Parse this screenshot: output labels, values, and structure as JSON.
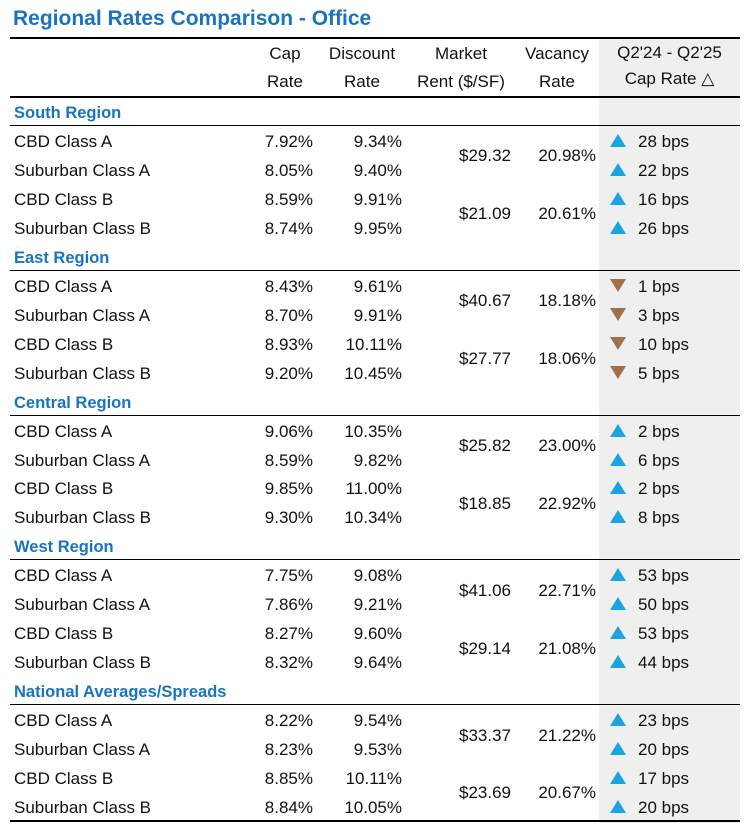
{
  "title": "Regional Rates Comparison - Office",
  "headers": {
    "cap": [
      "Cap",
      "Rate"
    ],
    "discount": [
      "Discount",
      "Rate"
    ],
    "rent": [
      "Market",
      "Rent ($/SF)"
    ],
    "vacancy": [
      "Vacancy",
      "Rate"
    ],
    "change": [
      "Q2'24 - Q2'25",
      "Cap Rate △"
    ]
  },
  "colors": {
    "title": "#1874c0",
    "up": "#1ca3e0",
    "down": "#a1704b",
    "shade": "#efefef"
  },
  "sections": [
    {
      "name": "South Region",
      "rows": [
        {
          "label": "CBD Class A",
          "cap": "7.92%",
          "discount": "9.34%",
          "change": "28 bps",
          "dir": "up"
        },
        {
          "label": "Suburban Class A",
          "cap": "8.05%",
          "discount": "9.40%",
          "change": "22 bps",
          "dir": "up"
        },
        {
          "label": "CBD Class B",
          "cap": "8.59%",
          "discount": "9.91%",
          "change": "16 bps",
          "dir": "up"
        },
        {
          "label": "Suburban Class B",
          "cap": "8.74%",
          "discount": "9.95%",
          "change": "26 bps",
          "dir": "up"
        }
      ],
      "pairs": [
        {
          "rent": "$29.32",
          "vacancy": "20.98%"
        },
        {
          "rent": "$21.09",
          "vacancy": "20.61%"
        }
      ]
    },
    {
      "name": "East Region",
      "rows": [
        {
          "label": "CBD Class A",
          "cap": "8.43%",
          "discount": "9.61%",
          "change": "1 bps",
          "dir": "down"
        },
        {
          "label": "Suburban Class A",
          "cap": "8.70%",
          "discount": "9.91%",
          "change": "3 bps",
          "dir": "down"
        },
        {
          "label": "CBD Class B",
          "cap": "8.93%",
          "discount": "10.11%",
          "change": "10 bps",
          "dir": "down"
        },
        {
          "label": "Suburban Class B",
          "cap": "9.20%",
          "discount": "10.45%",
          "change": "5 bps",
          "dir": "down"
        }
      ],
      "pairs": [
        {
          "rent": "$40.67",
          "vacancy": "18.18%"
        },
        {
          "rent": "$27.77",
          "vacancy": "18.06%"
        }
      ]
    },
    {
      "name": "Central Region",
      "rows": [
        {
          "label": "CBD Class A",
          "cap": "9.06%",
          "discount": "10.35%",
          "change": "2 bps",
          "dir": "up"
        },
        {
          "label": "Suburban Class A",
          "cap": "8.59%",
          "discount": "9.82%",
          "change": "6 bps",
          "dir": "up"
        },
        {
          "label": "CBD Class B",
          "cap": "9.85%",
          "discount": "11.00%",
          "change": "2 bps",
          "dir": "up"
        },
        {
          "label": "Suburban Class B",
          "cap": "9.30%",
          "discount": "10.34%",
          "change": "8 bps",
          "dir": "up"
        }
      ],
      "pairs": [
        {
          "rent": "$25.82",
          "vacancy": "23.00%"
        },
        {
          "rent": "$18.85",
          "vacancy": "22.92%"
        }
      ]
    },
    {
      "name": "West Region",
      "rows": [
        {
          "label": "CBD Class A",
          "cap": "7.75%",
          "discount": "9.08%",
          "change": "53 bps",
          "dir": "up"
        },
        {
          "label": "Suburban Class A",
          "cap": "7.86%",
          "discount": "9.21%",
          "change": "50 bps",
          "dir": "up"
        },
        {
          "label": "CBD Class B",
          "cap": "8.27%",
          "discount": "9.60%",
          "change": "53 bps",
          "dir": "up"
        },
        {
          "label": "Suburban Class B",
          "cap": "8.32%",
          "discount": "9.64%",
          "change": "44 bps",
          "dir": "up"
        }
      ],
      "pairs": [
        {
          "rent": "$41.06",
          "vacancy": "22.71%"
        },
        {
          "rent": "$29.14",
          "vacancy": "21.08%"
        }
      ]
    },
    {
      "name": "National Averages/Spreads",
      "rows": [
        {
          "label": "CBD Class A",
          "cap": "8.22%",
          "discount": "9.54%",
          "change": "23 bps",
          "dir": "up"
        },
        {
          "label": "Suburban Class A",
          "cap": "8.23%",
          "discount": "9.53%",
          "change": "20 bps",
          "dir": "up"
        },
        {
          "label": "CBD Class B",
          "cap": "8.85%",
          "discount": "10.11%",
          "change": "17 bps",
          "dir": "up"
        },
        {
          "label": "Suburban Class B",
          "cap": "8.84%",
          "discount": "10.05%",
          "change": "20 bps",
          "dir": "up"
        }
      ],
      "pairs": [
        {
          "rent": "$33.37",
          "vacancy": "21.22%"
        },
        {
          "rent": "$23.69",
          "vacancy": "20.67%"
        }
      ]
    }
  ]
}
